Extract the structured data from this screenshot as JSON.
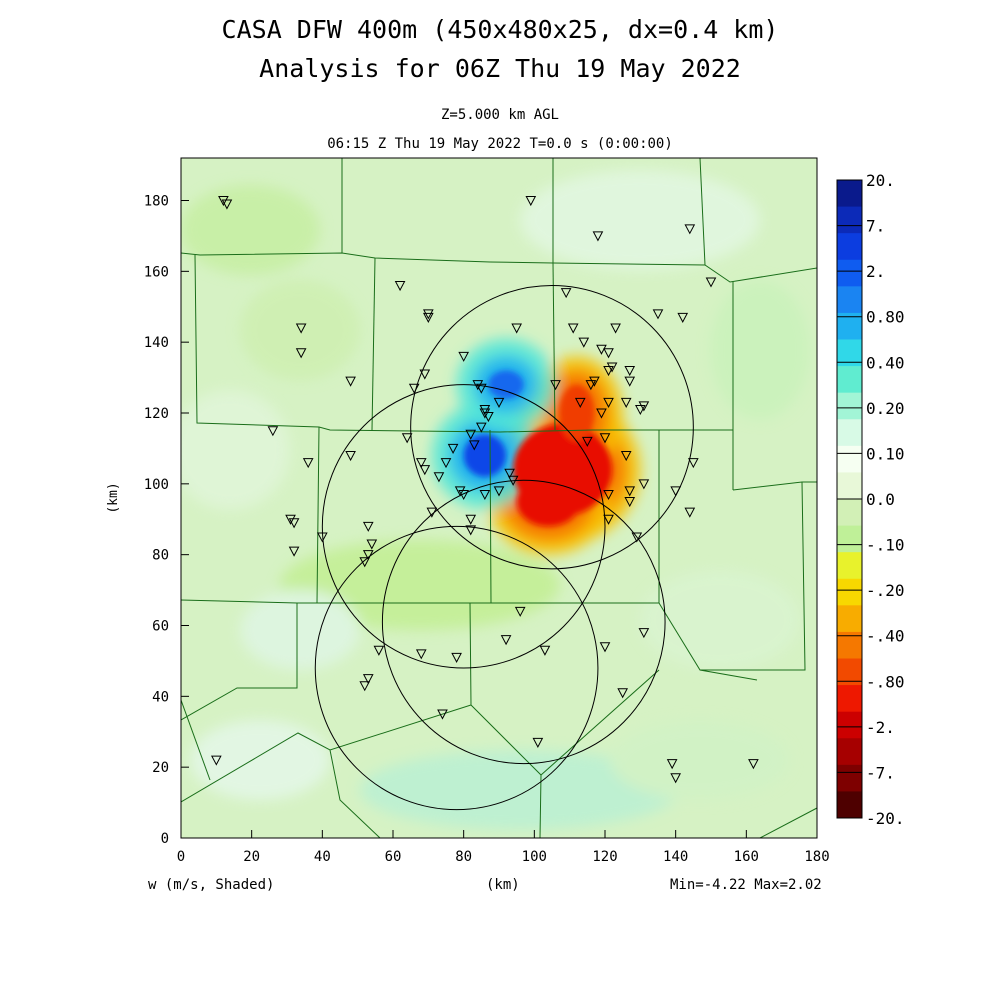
{
  "header": {
    "title_line1": "CASA DFW 400m (450x480x25, dx=0.4 km)",
    "title_line2": "Analysis for 06Z Thu 19 May 2022",
    "level": "Z=5.000 km AGL",
    "valid_time": "06:15 Z Thu 19 May 2022   T=0.0 s (0:00:00)"
  },
  "footer": {
    "field_label": "w (m/s, Shaded)",
    "xunit": "(km)",
    "minmax": "Min=-4.22 Max=2.02"
  },
  "chart_data": {
    "type": "heatmap",
    "title": "CASA DFW 400m (450x480x25, dx=0.4 km)",
    "xlabel": "(km)",
    "ylabel": "(km)",
    "xlim": [
      0,
      180
    ],
    "ylim": [
      0,
      192
    ],
    "xticks": [
      0,
      20,
      40,
      60,
      80,
      100,
      120,
      140,
      160,
      180
    ],
    "yticks": [
      0,
      20,
      40,
      60,
      80,
      100,
      120,
      140,
      160,
      180
    ],
    "grid": false,
    "field": "w (m/s)",
    "min": -4.22,
    "max": 2.02,
    "background": "#d6f2c4",
    "colorbar": {
      "labels": [
        "20.",
        "7.",
        "2.",
        "0.80",
        "0.40",
        "0.20",
        "0.10",
        "0.0",
        "-.10",
        "-.20",
        "-.40",
        "-.80",
        "-2.",
        "-7.",
        "-20."
      ],
      "colors": [
        "#0a1a8c",
        "#0c2ab8",
        "#0c3de0",
        "#0f5cf0",
        "#1a84f2",
        "#1fb0f0",
        "#30d8e8",
        "#60ecd0",
        "#a2f5d6",
        "#d8fae6",
        "#f6fff2",
        "#e8f8d8",
        "#d2f0b6",
        "#bff098",
        "#e8f22c",
        "#f8d800",
        "#f8ac00",
        "#f57800",
        "#f24a00",
        "#ee1800",
        "#cc0000",
        "#a60000",
        "#7e0000",
        "#4e0000"
      ]
    },
    "updraft_cores": [
      {
        "x": 108,
        "y": 104,
        "rx": 14,
        "ry": 13,
        "level": "-2.",
        "color": "#e80c00"
      },
      {
        "x": 104,
        "y": 95,
        "rx": 9,
        "ry": 7,
        "level": "-2.",
        "color": "#e80c00"
      },
      {
        "x": 112,
        "y": 120,
        "rx": 5,
        "ry": 8,
        "level": "-.80",
        "color": "#f03c00"
      }
    ],
    "downdraft_cores": [
      {
        "x": 86,
        "y": 108,
        "rx": 6,
        "ry": 6,
        "level": "2.",
        "color": "#1046e8"
      },
      {
        "x": 92,
        "y": 128,
        "rx": 5,
        "ry": 4,
        "level": "0.80",
        "color": "#1668ee"
      }
    ],
    "radar_rings": [
      {
        "cx": 78,
        "cy": 48,
        "r": 40
      },
      {
        "cx": 80,
        "cy": 88,
        "r": 40
      },
      {
        "cx": 97,
        "cy": 61,
        "r": 40
      },
      {
        "cx": 105,
        "cy": 116,
        "r": 40
      }
    ],
    "stations": [
      [
        12,
        180
      ],
      [
        13,
        179
      ],
      [
        99,
        180
      ],
      [
        118,
        170
      ],
      [
        144,
        172
      ],
      [
        150,
        157
      ],
      [
        62,
        156
      ],
      [
        109,
        154
      ],
      [
        70,
        148
      ],
      [
        70,
        147
      ],
      [
        34,
        144
      ],
      [
        34,
        137
      ],
      [
        95,
        144
      ],
      [
        111,
        144
      ],
      [
        123,
        144
      ],
      [
        135,
        148
      ],
      [
        142,
        147
      ],
      [
        114,
        140
      ],
      [
        119,
        138
      ],
      [
        121,
        137
      ],
      [
        122,
        133
      ],
      [
        121,
        132
      ],
      [
        127,
        132
      ],
      [
        127,
        129
      ],
      [
        117,
        129
      ],
      [
        116,
        128
      ],
      [
        80,
        136
      ],
      [
        69,
        131
      ],
      [
        66,
        127
      ],
      [
        48,
        129
      ],
      [
        84,
        128
      ],
      [
        85,
        127
      ],
      [
        90,
        123
      ],
      [
        106,
        128
      ],
      [
        86,
        121
      ],
      [
        86,
        120
      ],
      [
        87,
        119
      ],
      [
        113,
        123
      ],
      [
        121,
        123
      ],
      [
        126,
        123
      ],
      [
        131,
        122
      ],
      [
        130,
        121
      ],
      [
        119,
        120
      ],
      [
        64,
        113
      ],
      [
        82,
        114
      ],
      [
        85,
        116
      ],
      [
        83,
        111
      ],
      [
        77,
        110
      ],
      [
        115,
        112
      ],
      [
        120,
        113
      ],
      [
        126,
        108
      ],
      [
        26,
        115
      ],
      [
        36,
        106
      ],
      [
        48,
        108
      ],
      [
        68,
        106
      ],
      [
        69,
        104
      ],
      [
        73,
        102
      ],
      [
        75,
        106
      ],
      [
        79,
        98
      ],
      [
        80,
        97
      ],
      [
        86,
        97
      ],
      [
        90,
        98
      ],
      [
        93,
        103
      ],
      [
        94,
        101
      ],
      [
        121,
        97
      ],
      [
        127,
        98
      ],
      [
        127,
        95
      ],
      [
        131,
        100
      ],
      [
        140,
        98
      ],
      [
        144,
        92
      ],
      [
        145,
        106
      ],
      [
        71,
        92
      ],
      [
        82,
        87
      ],
      [
        82,
        90
      ],
      [
        121,
        90
      ],
      [
        129,
        85
      ],
      [
        31,
        90
      ],
      [
        32,
        89
      ],
      [
        32,
        81
      ],
      [
        40,
        85
      ],
      [
        53,
        88
      ],
      [
        54,
        83
      ],
      [
        53,
        80
      ],
      [
        52,
        78
      ],
      [
        56,
        53
      ],
      [
        52,
        43
      ],
      [
        53,
        45
      ],
      [
        68,
        52
      ],
      [
        78,
        51
      ],
      [
        74,
        35
      ],
      [
        92,
        56
      ],
      [
        96,
        64
      ],
      [
        103,
        53
      ],
      [
        120,
        54
      ],
      [
        131,
        58
      ],
      [
        125,
        41
      ],
      [
        101,
        27
      ],
      [
        139,
        21
      ],
      [
        140,
        17
      ],
      [
        162,
        21
      ],
      [
        10,
        22
      ]
    ]
  }
}
